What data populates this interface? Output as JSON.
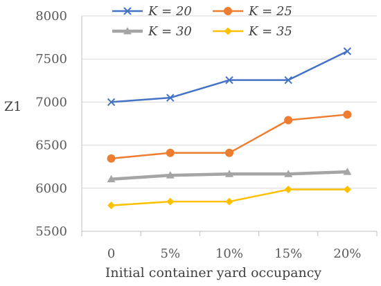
{
  "chart_data": {
    "type": "line",
    "categories": [
      "0",
      "5%",
      "10%",
      "15%",
      "20%"
    ],
    "series": [
      {
        "name": "K = 20",
        "color": "#4472C4",
        "marker": "x",
        "values": [
          7000,
          7050,
          7255,
          7255,
          7590
        ]
      },
      {
        "name": "K = 25",
        "color": "#ED7D31",
        "marker": "circle",
        "values": [
          6345,
          6410,
          6410,
          6790,
          6855
        ]
      },
      {
        "name": "K = 30",
        "color": "#A5A5A5",
        "marker": "triangle",
        "values": [
          6105,
          6150,
          6165,
          6165,
          6190
        ]
      },
      {
        "name": "K = 35",
        "color": "#FFC000",
        "marker": "diamond",
        "values": [
          5800,
          5845,
          5845,
          5985,
          5985
        ]
      }
    ],
    "xlabel": "Initial container yard occupancy",
    "ylabel": "Z1",
    "ylim": [
      5500,
      8000
    ],
    "yticks": [
      "5500",
      "6000",
      "6500",
      "7000",
      "7500",
      "8000"
    ],
    "grid": "horizontal",
    "legend_position": "top"
  }
}
